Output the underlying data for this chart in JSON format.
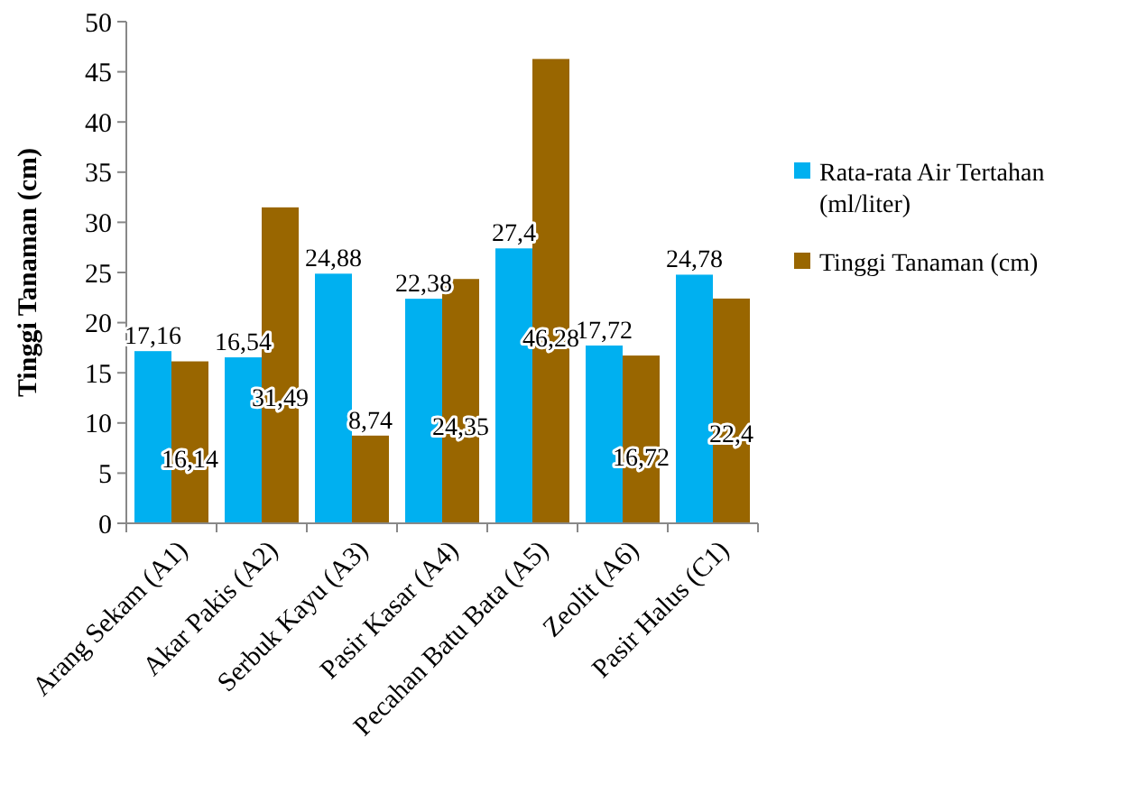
{
  "chart_data": {
    "type": "bar",
    "ylabel": "Tinggi Tanaman (cm)",
    "categories": [
      "Arang Sekam (A1)",
      "Akar Pakis (A2)",
      "Serbuk Kayu (A3)",
      "Pasir Kasar (A4)",
      "Pecahan Batu Bata (A5)",
      "Zeolit (A6)",
      "Pasir Halus (C1)"
    ],
    "series": [
      {
        "name": "Rata-rata Air Tertahan (ml/liter)",
        "color": "#00b0f0",
        "values": [
          17.16,
          16.54,
          24.88,
          22.38,
          27.4,
          17.72,
          24.78
        ],
        "value_labels": [
          "17,16",
          "16,54",
          "24,88",
          "22,38",
          "27,4",
          "17,72",
          "24,78"
        ]
      },
      {
        "name": "Tinggi Tanaman (cm)",
        "color": "#996600",
        "values": [
          16.14,
          31.49,
          8.74,
          24.35,
          46.28,
          16.72,
          22.4
        ],
        "value_labels": [
          "16,14",
          "31,49",
          "8,74",
          "24,35",
          "46,28",
          "16,72",
          "22,4"
        ]
      }
    ],
    "ylim": [
      0,
      50
    ],
    "yticks": [
      0,
      5,
      10,
      15,
      20,
      25,
      30,
      35,
      40,
      45,
      50
    ],
    "grid": false,
    "legend": "right"
  }
}
